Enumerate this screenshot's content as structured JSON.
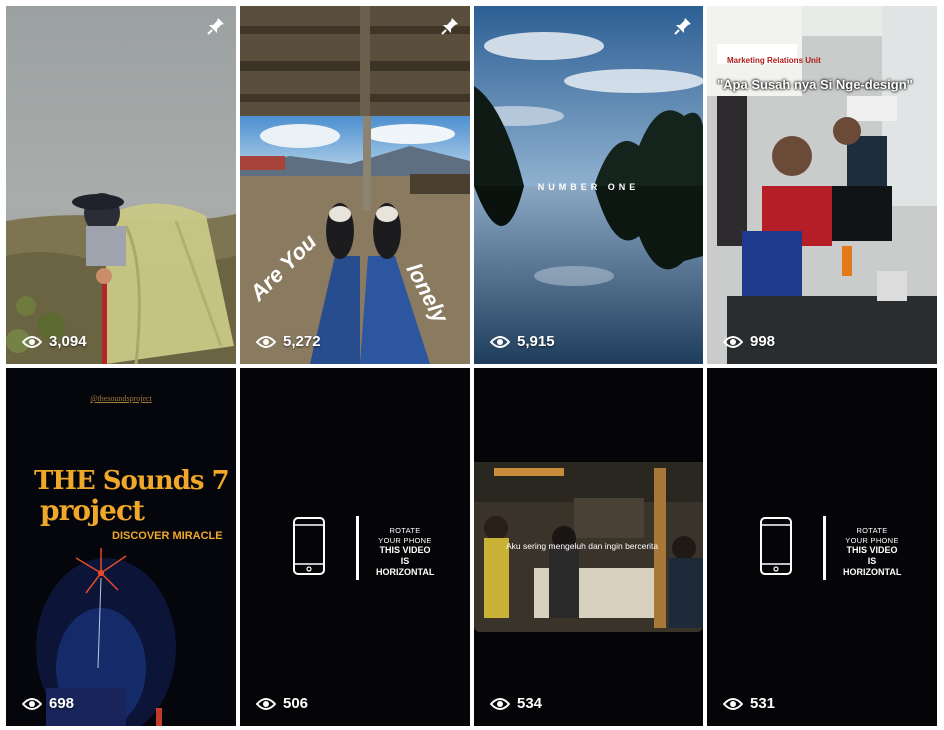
{
  "grid": {
    "tiles": [
      {
        "id": "tile-1",
        "views": "3,094",
        "pinned": true,
        "scene": "foggy-hiker"
      },
      {
        "id": "tile-2",
        "views": "5,272",
        "pinned": true,
        "scene": "sneakers-view",
        "overlay_left": "Are You",
        "overlay_right": "lonely"
      },
      {
        "id": "tile-3",
        "views": "5,915",
        "pinned": true,
        "scene": "lake-reflection",
        "overlay_center": "NUMBER ONE"
      },
      {
        "id": "tile-4",
        "views": "998",
        "pinned": false,
        "scene": "office",
        "caption": "\"Apa Susah nya Si Nge-design\"",
        "sign_text": "Marketing Relations Unit"
      },
      {
        "id": "tile-5",
        "views": "698",
        "pinned": false,
        "scene": "concert",
        "handle": "@thesoundsproject",
        "logo_line1": "THE Sounds 7",
        "logo_line2": "project",
        "logo_line3": "DISCOVER MIRACLE"
      },
      {
        "id": "tile-6",
        "views": "506",
        "pinned": false,
        "scene": "rotate-phone",
        "rotate_small_1": "ROTATE",
        "rotate_small_2": "YOUR PHONE",
        "rotate_big_1": "THIS VIDEO IS",
        "rotate_big_2": "HORIZONTAL"
      },
      {
        "id": "tile-7",
        "views": "534",
        "pinned": false,
        "scene": "workshop",
        "caption": "Aku sering mengeluh dan ingin bercerita"
      },
      {
        "id": "tile-8",
        "views": "531",
        "pinned": false,
        "scene": "rotate-phone",
        "rotate_small_1": "ROTATE",
        "rotate_small_2": "YOUR PHONE",
        "rotate_big_1": "THIS VIDEO IS",
        "rotate_big_2": "HORIZONTAL"
      }
    ]
  },
  "icons": {
    "pin": "pin-icon",
    "eye": "eye-icon",
    "phone": "phone-icon"
  },
  "colors": {
    "tile_bg": "#050508",
    "text": "#ffffff",
    "logo_gold": "#f0a82a"
  }
}
